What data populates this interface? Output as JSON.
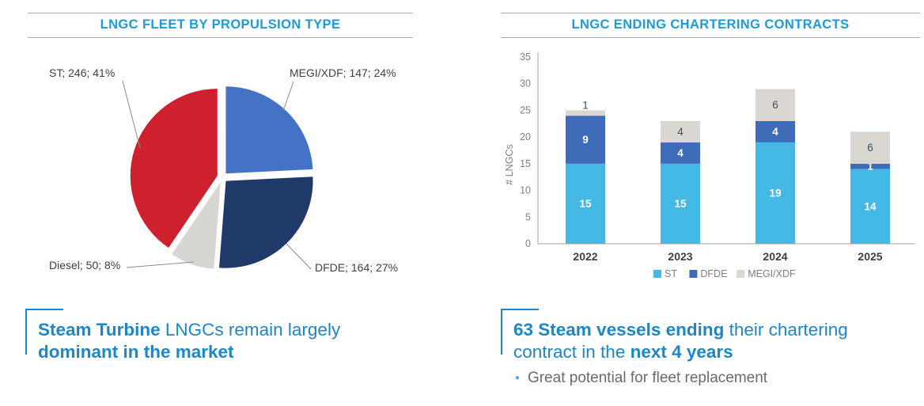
{
  "theme": {
    "title_blue": "#1d9ad7",
    "caption_blue": "#1b86c8",
    "rule_gray": "#ababab",
    "axis_gray": "#bfbfbf",
    "tick_text": "#7f7f7f",
    "bullet_dot": "#4fb3df",
    "bullet_text": "#6a6a6a"
  },
  "left": {
    "title": "LNGC FLEET BY PROPULSION TYPE",
    "caption": {
      "bold1": "Steam Turbine",
      "normal1": " LNGCs remain largely",
      "bold2": "dominant in the market"
    }
  },
  "right": {
    "title": "LNGC ENDING CHARTERING CONTRACTS",
    "caption": {
      "bold1": "63 Steam vessels ending",
      "normal1": " their chartering",
      "normal2": "contract in the ",
      "bold2": "next 4 years"
    },
    "bullet": "Great potential for fleet replacement"
  },
  "chart_data": [
    {
      "type": "pie",
      "title": "LNGC FLEET BY PROPULSION TYPE",
      "exploded": true,
      "start_angle_deg": 0,
      "direction": "clockwise",
      "label_format": "label; value; percent%",
      "slices": [
        {
          "label": "MEGI/XDF",
          "value": 147,
          "percent": 24,
          "color": "#4472c4"
        },
        {
          "label": "DFDE",
          "value": 164,
          "percent": 27,
          "color": "#1f3a68"
        },
        {
          "label": "Diesel",
          "value": 50,
          "percent": 8,
          "color": "#d8d6d2"
        },
        {
          "label": "ST",
          "value": 246,
          "percent": 41,
          "color": "#cf202e"
        }
      ]
    },
    {
      "type": "bar",
      "stacked": true,
      "title": "LNGC ENDING CHARTERING CONTRACTS",
      "categories": [
        "2022",
        "2023",
        "2024",
        "2025"
      ],
      "series": [
        {
          "name": "ST",
          "color": "#45b9e6",
          "values": [
            15,
            15,
            19,
            14
          ]
        },
        {
          "name": "DFDE",
          "color": "#3e6cb8",
          "values": [
            9,
            4,
            4,
            1
          ]
        },
        {
          "name": "MEGI/XDF",
          "color": "#dad7d2",
          "values": [
            1,
            4,
            6,
            6
          ]
        }
      ],
      "totals": [
        25,
        23,
        29,
        21
      ],
      "ylabel": "# LNGCs",
      "ylim": [
        0,
        35
      ],
      "yticks": [
        0,
        5,
        10,
        15,
        20,
        25,
        30,
        35
      ],
      "legend": [
        "ST",
        "DFDE",
        "MEGI/XDF"
      ],
      "legend_position": "bottom",
      "grid": false
    }
  ]
}
